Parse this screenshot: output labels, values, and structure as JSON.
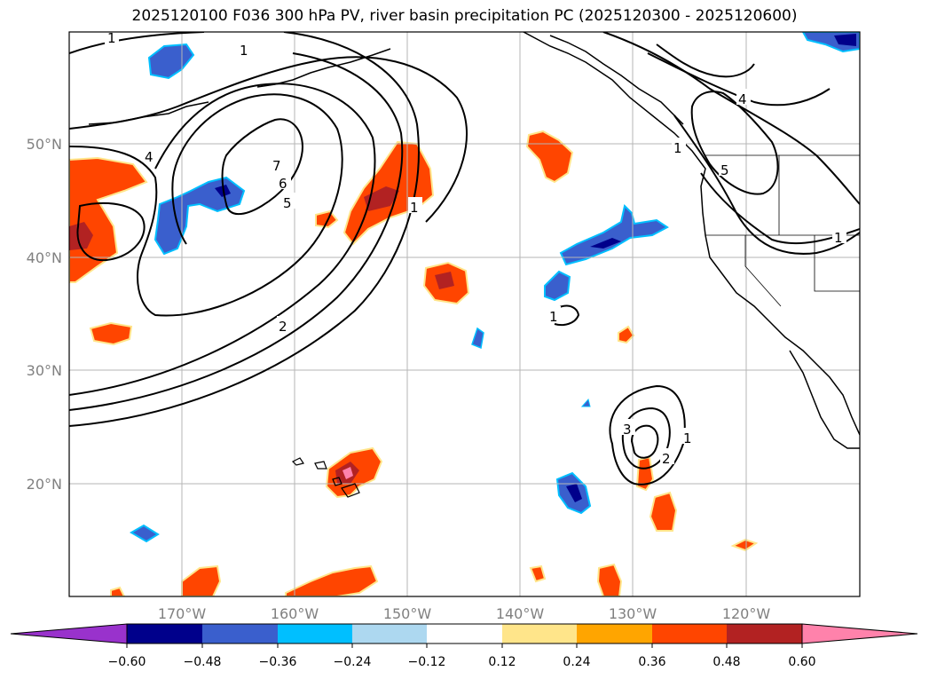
{
  "title": "2025120100 F036 300 hPa PV, river basin precipitation PC (2025120300 - 2025120600)",
  "map": {
    "lat_labels": [
      "50°N",
      "40°N",
      "30°N",
      "20°N"
    ],
    "lon_labels": [
      "170°W",
      "160°W",
      "150°W",
      "140°W",
      "130°W",
      "120°W"
    ],
    "contour_labels": [
      "1",
      "1",
      "4",
      "7",
      "6",
      "5",
      "2",
      "1",
      "1",
      "1",
      "4",
      "5",
      "1",
      "3",
      "2",
      "1"
    ]
  },
  "colorbar": {
    "ticks": [
      "−0.60",
      "−0.48",
      "−0.36",
      "−0.24",
      "−0.12",
      "0.12",
      "0.24",
      "0.36",
      "0.48",
      "0.60"
    ],
    "colors": {
      "under": "#9932cc",
      "c1": "#00008b",
      "c2": "#3a5fcd",
      "c3": "#00bfff",
      "c4": "#add8f0",
      "c5": "#ffffff",
      "c6": "#ffe58a",
      "c7": "#ffa500",
      "c8": "#ff4500",
      "c9": "#b22222",
      "c10": "#ff82ab",
      "over": "#ff82ab"
    }
  }
}
